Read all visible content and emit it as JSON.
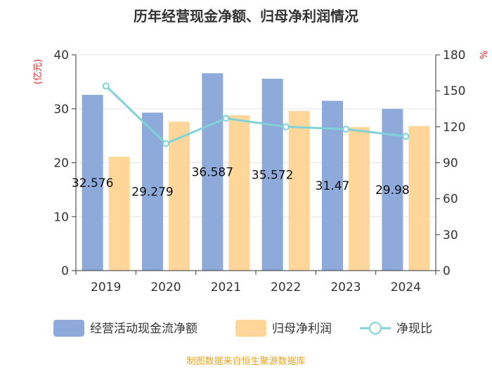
{
  "chart_data": {
    "type": "bar",
    "title": "历年经营现金净额、归母净利润情况",
    "categories": [
      "2019",
      "2020",
      "2021",
      "2022",
      "2023",
      "2024"
    ],
    "series": [
      {
        "name": "经营活动现金流净额",
        "type": "bar",
        "axis": "left",
        "color": "#8eaadb",
        "values": [
          32.576,
          29.279,
          36.587,
          35.572,
          31.47,
          29.98
        ],
        "labels": [
          "32.576",
          "29.279",
          "36.587",
          "35.572",
          "31.47",
          "29.98"
        ]
      },
      {
        "name": "归母净利润",
        "type": "bar",
        "axis": "left",
        "color": "#ffd699",
        "values": [
          21.1,
          27.6,
          28.8,
          29.6,
          26.6,
          26.8
        ]
      },
      {
        "name": "净现比",
        "type": "line",
        "axis": "right",
        "color": "#7fd3d8",
        "values": [
          154,
          106,
          127,
          120,
          118,
          112
        ]
      }
    ],
    "y_left": {
      "label": "(亿元)",
      "min": 0,
      "max": 40,
      "ticks": [
        0,
        10,
        20,
        30,
        40
      ]
    },
    "y_right": {
      "label": "%",
      "min": 0,
      "max": 180,
      "ticks": [
        0,
        30,
        60,
        90,
        120,
        150,
        180
      ]
    },
    "grid": true,
    "legend_position": "bottom"
  },
  "source": "制图数据来自恒生聚源数据库"
}
